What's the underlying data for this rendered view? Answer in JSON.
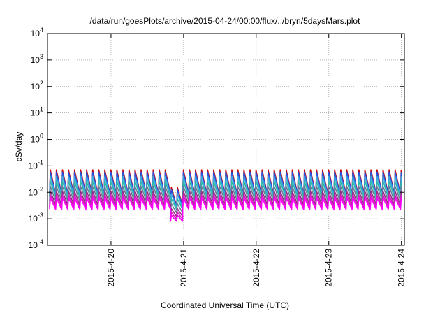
{
  "chart_data": {
    "type": "line",
    "title": "/data/run/goesPlots/archive/2015-04-24/00:00/flux/../bryn/5daysMars.plot",
    "xlabel": "Coordinated Universal Time (UTC)",
    "ylabel": "cSv/day",
    "yscale": "log",
    "ylim": [
      0.0001,
      10000
    ],
    "xlim": [
      "2015-04-19T03:00",
      "2015-04-24T01:00"
    ],
    "grid": true,
    "legend": "none",
    "y_ticks": [
      {
        "value": 0.0001,
        "mantissa": "10",
        "exp": "-4"
      },
      {
        "value": 0.001,
        "mantissa": "10",
        "exp": "-3"
      },
      {
        "value": 0.01,
        "mantissa": "10",
        "exp": "-2"
      },
      {
        "value": 0.1,
        "mantissa": "10",
        "exp": "-1"
      },
      {
        "value": 1,
        "mantissa": "10",
        "exp": "0"
      },
      {
        "value": 10,
        "mantissa": "10",
        "exp": "1"
      },
      {
        "value": 100,
        "mantissa": "10",
        "exp": "2"
      },
      {
        "value": 1000,
        "mantissa": "10",
        "exp": "3"
      },
      {
        "value": 10000,
        "mantissa": "10",
        "exp": "4"
      }
    ],
    "x_ticks": [
      {
        "date": "2015-04-20T00:00",
        "label": "2015-4-20"
      },
      {
        "date": "2015-04-21T00:00",
        "label": "2015-4-21"
      },
      {
        "date": "2015-04-22T00:00",
        "label": "2015-4-22"
      },
      {
        "date": "2015-04-23T00:00",
        "label": "2015-4-23"
      },
      {
        "date": "2015-04-24T00:00",
        "label": "2015-4-24"
      }
    ],
    "pattern": "sawtooth",
    "sawtooth_period_hours": 2,
    "series": [
      {
        "color": "#d00000",
        "peak": 0.07,
        "trough": 0.009
      },
      {
        "color": "#2a50d8",
        "peak": 0.058,
        "trough": 0.0085
      },
      {
        "color": "#3aa8e0",
        "peak": 0.04,
        "trough": 0.0075
      },
      {
        "color": "#30b8a8",
        "peak": 0.026,
        "trough": 0.0065
      },
      {
        "color": "#6a7a9a",
        "peak": 0.017,
        "trough": 0.0048
      },
      {
        "color": "#9a2a8a",
        "peak": 0.011,
        "trough": 0.0035
      },
      {
        "color": "#d020b8",
        "peak": 0.008,
        "trough": 0.0028
      },
      {
        "color": "#ff00ff",
        "peak": 0.0062,
        "trough": 0.0023
      }
    ]
  }
}
